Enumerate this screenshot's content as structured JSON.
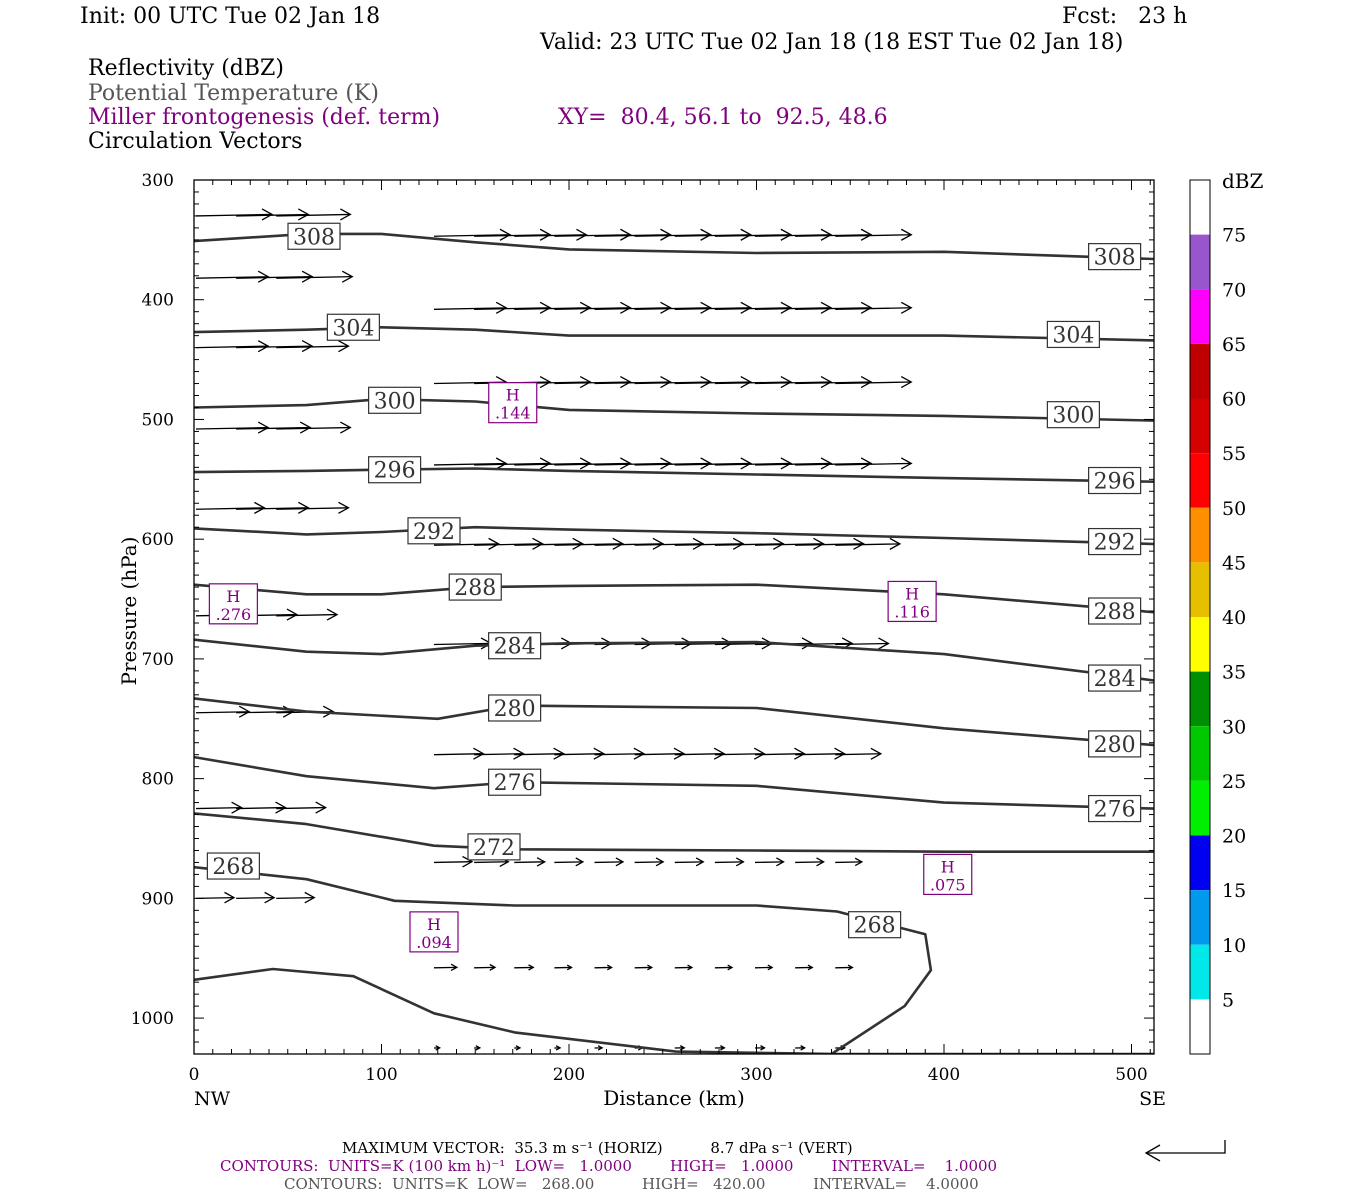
{
  "header": {
    "init": "Init: 00 UTC Tue 02 Jan 18",
    "fcst": "Fcst:   23 h",
    "valid": "Valid: 23 UTC Tue 02 Jan 18 (18 EST Tue 02 Jan 18)"
  },
  "fields": {
    "reflectivity": "Reflectivity (dBZ)",
    "theta": "Potential Temperature (K)",
    "miller": "Miller frontogenesis (def. term)",
    "xy": "XY=  80.4, 56.1 to  92.5, 48.6",
    "vectors": "Circulation Vectors"
  },
  "colors": {
    "contour": "#333333",
    "frontogenesis": "#800080",
    "axis": "#000000"
  },
  "colorbar": {
    "title": "dBZ",
    "levels": [
      "5",
      "10",
      "15",
      "20",
      "25",
      "30",
      "35",
      "40",
      "45",
      "50",
      "55",
      "60",
      "65",
      "70",
      "75"
    ],
    "colors": [
      "#ffffff",
      "#00e8e8",
      "#0099ee",
      "#0000f0",
      "#00ee00",
      "#00c800",
      "#008f00",
      "#ffff00",
      "#e6c000",
      "#ff8f00",
      "#ff0000",
      "#d60000",
      "#c00000",
      "#ff00ff",
      "#9955cc",
      "#ffffff"
    ]
  },
  "footer": {
    "max_vector": "MAXIMUM VECTOR:  35.3 m s⁻¹ (HORIZ)          8.7 dPa s⁻¹ (VERT)",
    "contours_purple": "CONTOURS:  UNITS=K (100 km h)⁻¹  LOW=   1.0000        HIGH=   1.0000        INTERVAL=    1.0000",
    "contours_black": "CONTOURS:  UNITS=K  LOW=   268.00          HIGH=   420.00          INTERVAL=    4.0000"
  },
  "chart_data": {
    "type": "line",
    "title": "",
    "xlabel": "Distance (km)",
    "ylabel": "Pressure (hPa)",
    "xlim": [
      0,
      512
    ],
    "ylim": [
      1030,
      300
    ],
    "x_ticks": [
      0,
      100,
      200,
      300,
      400,
      500
    ],
    "y_ticks": [
      300,
      400,
      500,
      600,
      700,
      800,
      900,
      1000
    ],
    "x_end_labels": {
      "left": "NW",
      "right": "SE"
    },
    "series": [
      {
        "name": "308",
        "points": [
          [
            0,
            351
          ],
          [
            60,
            345
          ],
          [
            100,
            345
          ],
          [
            150,
            352
          ],
          [
            200,
            358
          ],
          [
            300,
            361
          ],
          [
            400,
            360
          ],
          [
            512,
            366
          ]
        ],
        "labels": [
          [
            64,
            347
          ],
          [
            491,
            364
          ]
        ]
      },
      {
        "name": "304",
        "points": [
          [
            0,
            427
          ],
          [
            60,
            425
          ],
          [
            100,
            423
          ],
          [
            150,
            425
          ],
          [
            200,
            430
          ],
          [
            300,
            430
          ],
          [
            400,
            430
          ],
          [
            512,
            434
          ]
        ],
        "labels": [
          [
            85,
            423
          ],
          [
            469,
            429
          ]
        ]
      },
      {
        "name": "300",
        "points": [
          [
            0,
            490
          ],
          [
            60,
            488
          ],
          [
            100,
            483
          ],
          [
            150,
            485
          ],
          [
            200,
            492
          ],
          [
            300,
            495
          ],
          [
            400,
            497
          ],
          [
            512,
            501
          ]
        ],
        "labels": [
          [
            107,
            484
          ],
          [
            469,
            496
          ]
        ]
      },
      {
        "name": "296",
        "points": [
          [
            0,
            544
          ],
          [
            60,
            543
          ],
          [
            100,
            542
          ],
          [
            150,
            541
          ],
          [
            200,
            543
          ],
          [
            300,
            546
          ],
          [
            400,
            549
          ],
          [
            512,
            552
          ]
        ],
        "labels": [
          [
            107,
            542
          ],
          [
            491,
            551
          ]
        ]
      },
      {
        "name": "292",
        "points": [
          [
            0,
            591
          ],
          [
            60,
            596
          ],
          [
            100,
            594
          ],
          [
            150,
            590
          ],
          [
            200,
            592
          ],
          [
            300,
            595
          ],
          [
            400,
            599
          ],
          [
            512,
            604
          ]
        ],
        "labels": [
          [
            128,
            593
          ],
          [
            491,
            602
          ]
        ]
      },
      {
        "name": "288",
        "points": [
          [
            0,
            638
          ],
          [
            60,
            646
          ],
          [
            100,
            646
          ],
          [
            150,
            640
          ],
          [
            200,
            639
          ],
          [
            300,
            638
          ],
          [
            400,
            646
          ],
          [
            512,
            661
          ]
        ],
        "labels": [
          [
            150,
            640
          ],
          [
            491,
            660
          ]
        ]
      },
      {
        "name": "284",
        "points": [
          [
            0,
            684
          ],
          [
            60,
            694
          ],
          [
            100,
            696
          ],
          [
            150,
            689
          ],
          [
            200,
            687
          ],
          [
            300,
            686
          ],
          [
            400,
            696
          ],
          [
            512,
            718
          ]
        ],
        "labels": [
          [
            171,
            689
          ],
          [
            491,
            716
          ]
        ]
      },
      {
        "name": "280",
        "points": [
          [
            0,
            733
          ],
          [
            60,
            744
          ],
          [
            130,
            750
          ],
          [
            171,
            739
          ],
          [
            300,
            741
          ],
          [
            400,
            758
          ],
          [
            512,
            772
          ]
        ],
        "labels": [
          [
            171,
            741
          ],
          [
            491,
            771
          ]
        ]
      },
      {
        "name": "276",
        "points": [
          [
            0,
            782
          ],
          [
            60,
            798
          ],
          [
            128,
            808
          ],
          [
            171,
            803
          ],
          [
            300,
            806
          ],
          [
            400,
            820
          ],
          [
            512,
            825
          ]
        ],
        "labels": [
          [
            171,
            803
          ],
          [
            491,
            825
          ]
        ]
      },
      {
        "name": "272",
        "points": [
          [
            0,
            829
          ],
          [
            60,
            838
          ],
          [
            128,
            856
          ],
          [
            171,
            859
          ],
          [
            300,
            860
          ],
          [
            400,
            861
          ],
          [
            512,
            861
          ]
        ],
        "labels": [
          [
            160,
            857
          ]
        ]
      },
      {
        "name": "268",
        "points": [
          [
            0,
            874
          ],
          [
            60,
            884
          ],
          [
            107,
            902
          ],
          [
            171,
            906
          ],
          [
            300,
            906
          ],
          [
            343,
            911
          ],
          [
            390,
            930
          ],
          [
            393,
            960
          ],
          [
            379,
            990
          ],
          [
            340,
            1030
          ]
        ],
        "labels": [
          [
            21,
            873
          ],
          [
            363,
            922
          ]
        ]
      },
      {
        "name": "",
        "points": [
          [
            0,
            968
          ],
          [
            42,
            959
          ],
          [
            85,
            965
          ],
          [
            128,
            996
          ],
          [
            171,
            1012
          ],
          [
            257,
            1028
          ],
          [
            343,
            1030
          ],
          [
            512,
            1030
          ]
        ],
        "labels": []
      }
    ],
    "frontogenesis_maxima": [
      {
        "symbol": "H",
        "value": ".144",
        "x": 170,
        "y": 486
      },
      {
        "symbol": "H",
        "value": ".276",
        "x": 21,
        "y": 654
      },
      {
        "symbol": "H",
        "value": ".116",
        "x": 383,
        "y": 652
      },
      {
        "symbol": "H",
        "value": ".075",
        "x": 402,
        "y": 880
      },
      {
        "symbol": "H",
        "value": ".094",
        "x": 128,
        "y": 928
      }
    ],
    "vector_rows": [
      {
        "p": 330,
        "u": [
          4.0,
          3.8,
          3.9
        ],
        "x0": 0
      },
      {
        "p": 347,
        "u": [
          4.0,
          4.0,
          3.8,
          4.0,
          4.0,
          4.0,
          4.0,
          4.0,
          4.0,
          4.0,
          4.0
        ],
        "x0": 128
      },
      {
        "p": 382,
        "u": [
          3.8,
          4.0,
          4.0
        ],
        "x0": 0
      },
      {
        "p": 408,
        "u": [
          3.8,
          4.0,
          4.0,
          4.0,
          4.0,
          4.0,
          4.0,
          4.0,
          4.0,
          4.0,
          4.0
        ],
        "x0": 128
      },
      {
        "p": 440,
        "u": [
          3.8,
          4.0,
          3.8
        ],
        "x0": 0
      },
      {
        "p": 470,
        "u": [
          3.8,
          4.0,
          4.0,
          4.0,
          4.0,
          4.0,
          4.0,
          4.0,
          4.0,
          4.0,
          4.0
        ],
        "x0": 128
      },
      {
        "p": 508,
        "u": [
          3.8,
          3.9,
          3.9
        ],
        "x0": 0
      },
      {
        "p": 538,
        "u": [
          3.8,
          4.0,
          4.0,
          4.0,
          4.0,
          4.0,
          4.0,
          4.0,
          4.0,
          4.0,
          4.0
        ],
        "x0": 128
      },
      {
        "p": 575,
        "u": [
          3.6,
          3.8,
          3.8
        ],
        "x0": 0
      },
      {
        "p": 605,
        "u": [
          3.4,
          3.6,
          3.6,
          3.6,
          3.6,
          3.6,
          3.6,
          3.6,
          3.6,
          3.6,
          3.4
        ],
        "x0": 128
      },
      {
        "p": 664,
        "u": [
          3.0,
          3.2,
          3.2
        ],
        "x0": 0
      },
      {
        "p": 688,
        "u": [
          3.0,
          3.0,
          3.0,
          3.0,
          3.0,
          3.0,
          3.0,
          3.0,
          3.0,
          3.0,
          2.8
        ],
        "x0": 128
      },
      {
        "p": 745,
        "u": [
          2.8,
          3.0,
          3.0
        ],
        "x0": 0
      },
      {
        "p": 780,
        "u": [
          2.6,
          2.6,
          2.6,
          2.6,
          2.6,
          2.6,
          2.6,
          2.6,
          2.6,
          2.6,
          2.4
        ],
        "x0": 128
      },
      {
        "p": 825,
        "u": [
          2.4,
          2.6,
          2.6
        ],
        "x0": 0
      },
      {
        "p": 870,
        "u": [
          2.0,
          1.8,
          1.6,
          1.5,
          1.5,
          1.5,
          1.5,
          1.5,
          1.5,
          1.5,
          1.4
        ],
        "x0": 128
      },
      {
        "p": 900,
        "u": [
          2.0,
          2.0,
          2.0
        ],
        "x0": 0
      },
      {
        "p": 958,
        "u": [
          1.2,
          1.1,
          1.0,
          0.9,
          0.9,
          0.9,
          0.9,
          0.9,
          0.9,
          0.9,
          0.9
        ],
        "x0": 128
      },
      {
        "p": 1025,
        "u": [
          0.3,
          0.3,
          0.3,
          0.3,
          0.4,
          0.4,
          0.5,
          0.5,
          0.5,
          0.5,
          0.5
        ],
        "x0": 128
      }
    ]
  }
}
